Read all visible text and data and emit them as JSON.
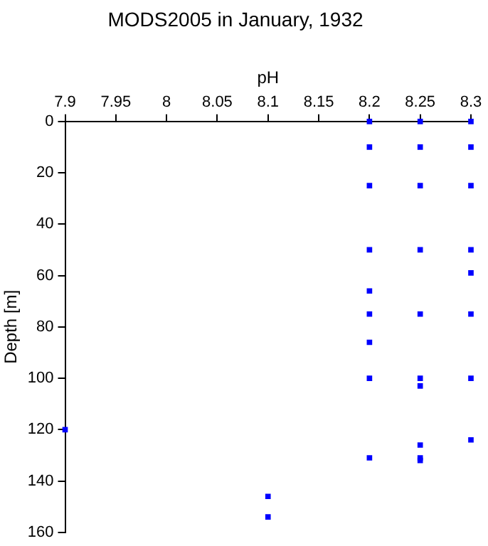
{
  "chart_data": {
    "type": "scatter",
    "title": "MODS2005 in January, 1932",
    "xlabel": "pH",
    "ylabel": "Depth [m]",
    "x": [
      8.2,
      8.2,
      8.2,
      8.2,
      8.2,
      8.2,
      8.2,
      8.2,
      8.2,
      8.25,
      8.25,
      8.25,
      8.25,
      8.25,
      8.25,
      8.25,
      8.25,
      8.25,
      8.25,
      8.3,
      8.3,
      8.3,
      8.3,
      8.3,
      8.3,
      8.3,
      8.3,
      7.9,
      8.1,
      8.1
    ],
    "series": [
      {
        "color": "#0000ff",
        "values": [
          0,
          10,
          25,
          50,
          66,
          75,
          86,
          100,
          131,
          0,
          10,
          25,
          50,
          75,
          100,
          103,
          126,
          131,
          132,
          0,
          10,
          25,
          50,
          59,
          75,
          100,
          124,
          120,
          146,
          154
        ]
      }
    ],
    "xlim": [
      7.9,
      8.3
    ],
    "xticks": [
      7.9,
      7.95,
      8,
      8.05,
      8.1,
      8.15,
      8.2,
      8.25,
      8.3
    ],
    "ylim": [
      160,
      0
    ],
    "yticks": [
      0,
      20,
      40,
      60,
      80,
      100,
      120,
      140,
      160
    ],
    "grid": false,
    "legend": false,
    "marker": "square"
  }
}
